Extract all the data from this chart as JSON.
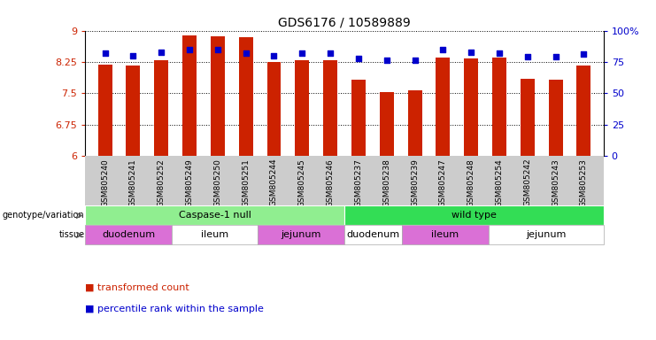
{
  "title": "GDS6176 / 10589889",
  "samples": [
    "GSM805240",
    "GSM805241",
    "GSM805252",
    "GSM805249",
    "GSM805250",
    "GSM805251",
    "GSM805244",
    "GSM805245",
    "GSM805246",
    "GSM805237",
    "GSM805238",
    "GSM805239",
    "GSM805247",
    "GSM805248",
    "GSM805254",
    "GSM805242",
    "GSM805243",
    "GSM805253"
  ],
  "red_values": [
    8.18,
    8.16,
    8.28,
    8.88,
    8.87,
    8.85,
    8.25,
    8.3,
    8.3,
    7.82,
    7.52,
    7.57,
    8.35,
    8.33,
    8.35,
    7.85,
    7.83,
    8.17
  ],
  "blue_values": [
    82,
    80,
    83,
    85,
    85,
    82,
    80,
    82,
    82,
    78,
    76,
    76,
    85,
    83,
    82,
    79,
    79,
    81
  ],
  "ymin": 6.0,
  "ymax": 9.0,
  "y2min": 0,
  "y2max": 100,
  "yticks": [
    6.0,
    6.75,
    7.5,
    8.25,
    9.0
  ],
  "ytick_labels": [
    "6",
    "6.75",
    "7.5",
    "8.25",
    "9"
  ],
  "y2ticks": [
    0,
    25,
    50,
    75,
    100
  ],
  "y2tick_labels": [
    "0",
    "25",
    "50",
    "75",
    "100%"
  ],
  "genotype_groups": [
    {
      "label": "Caspase-1 null",
      "start": 0,
      "end": 9,
      "color": "#90EE90"
    },
    {
      "label": "wild type",
      "start": 9,
      "end": 18,
      "color": "#33DD55"
    }
  ],
  "tissue_groups": [
    {
      "label": "duodenum",
      "start": 0,
      "end": 3,
      "color": "#DA70D6"
    },
    {
      "label": "ileum",
      "start": 3,
      "end": 6,
      "color": "#FFFFFF"
    },
    {
      "label": "jejunum",
      "start": 6,
      "end": 9,
      "color": "#DA70D6"
    },
    {
      "label": "duodenum",
      "start": 9,
      "end": 11,
      "color": "#FFFFFF"
    },
    {
      "label": "ileum",
      "start": 11,
      "end": 14,
      "color": "#DA70D6"
    },
    {
      "label": "jejunum",
      "start": 14,
      "end": 18,
      "color": "#FFFFFF"
    }
  ],
  "bar_color": "#CC2200",
  "dot_color": "#0000CC",
  "tick_label_color_left": "#CC2200",
  "tick_label_color_right": "#0000CC",
  "legend_items": [
    {
      "color": "#CC2200",
      "label": "transformed count"
    },
    {
      "color": "#0000CC",
      "label": "percentile rank within the sample"
    }
  ],
  "bar_width": 0.5,
  "dot_size": 25,
  "sample_bg_color": "#CCCCCC",
  "left_label_color": "#666666"
}
